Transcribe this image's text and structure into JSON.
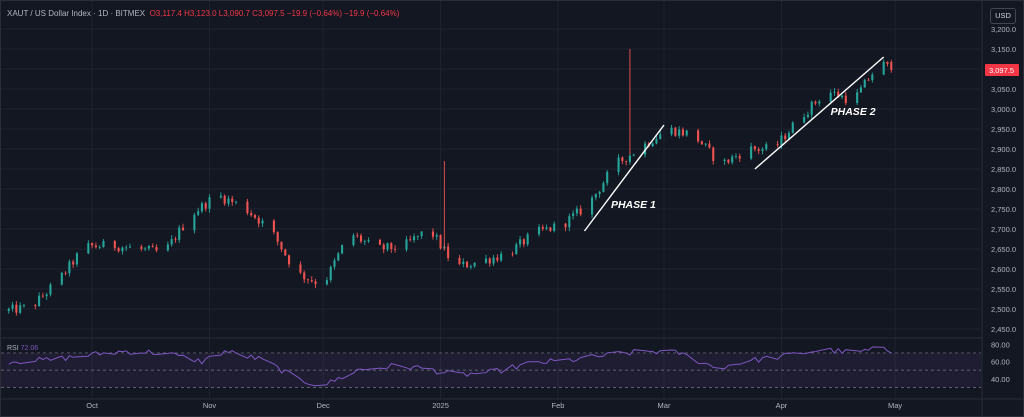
{
  "header": {
    "symbol": "XAUT / US Dollar Index · 1D · BITMEX",
    "ohlc": "O3,117.4  H3,123.0  L3,090.7  C3,097.5  −19.9 (−0.64%)  −19.9 (−0.64%)"
  },
  "currency_button": "USD",
  "price_axis": {
    "ticks": [
      "3,200.0",
      "3,150.0",
      "3,100.0",
      "3,050.0",
      "3,000.0",
      "2,950.0",
      "2,900.0",
      "2,850.0",
      "2,800.0",
      "2,750.0",
      "2,700.0",
      "2,650.0",
      "2,600.0",
      "2,550.0",
      "2,500.0",
      "2,450.0"
    ],
    "last_price": "3,097.5"
  },
  "time_axis": {
    "labels": [
      "Oct",
      "Nov",
      "Dec",
      "2025",
      "Feb",
      "Mar",
      "Apr",
      "May"
    ]
  },
  "rsi": {
    "label": "RSI",
    "value": "72.06",
    "ticks": [
      "80.00",
      "60.00",
      "40.00"
    ]
  },
  "annotations": {
    "phase1": "PHASE 1",
    "phase2": "PHASE 2"
  },
  "colors": {
    "up": "#26a69a",
    "down": "#ef5350",
    "background": "#131722",
    "rsi_line": "#7e57c2",
    "trendline": "#ffffff"
  },
  "chart_data": {
    "type": "candlestick",
    "ylim": [
      2430,
      3230
    ],
    "grid": true,
    "x_domain": [
      "2024-09-08",
      "2025-05-20"
    ],
    "close_path": [
      [
        "2024-09-08",
        2495
      ],
      [
        "2024-09-15",
        2505
      ],
      [
        "2024-09-22",
        2570
      ],
      [
        "2024-09-29",
        2655
      ],
      [
        "2024-10-06",
        2660
      ],
      [
        "2024-10-13",
        2650
      ],
      [
        "2024-10-20",
        2640
      ],
      [
        "2024-10-27",
        2735
      ],
      [
        "2024-11-03",
        2785
      ],
      [
        "2024-11-10",
        2755
      ],
      [
        "2024-11-17",
        2700
      ],
      [
        "2024-11-24",
        2590
      ],
      [
        "2024-12-01",
        2560
      ],
      [
        "2024-12-08",
        2690
      ],
      [
        "2024-12-15",
        2650
      ],
      [
        "2024-12-22",
        2655
      ],
      [
        "2024-12-29",
        2700
      ],
      [
        "2025-01-05",
        2605
      ],
      [
        "2025-01-12",
        2620
      ],
      [
        "2025-01-19",
        2640
      ],
      [
        "2025-01-26",
        2690
      ],
      [
        "2025-02-02",
        2710
      ],
      [
        "2025-02-09",
        2760
      ],
      [
        "2025-02-16",
        2860
      ],
      [
        "2025-02-23",
        2905
      ],
      [
        "2025-03-02",
        2950
      ],
      [
        "2025-03-09",
        2935
      ],
      [
        "2025-03-16",
        2860
      ],
      [
        "2025-03-23",
        2900
      ],
      [
        "2025-03-30",
        2900
      ],
      [
        "2025-04-06",
        2980
      ],
      [
        "2025-04-13",
        3045
      ],
      [
        "2025-04-20",
        3020
      ],
      [
        "2025-04-27",
        3117
      ],
      [
        "2025-04-30",
        3097.5
      ]
    ],
    "spikes": [
      [
        "2025-01-02",
        2870
      ],
      [
        "2025-02-20",
        3150
      ]
    ],
    "last": {
      "date": "2025-04-30",
      "open": 3117.4,
      "high": 3123.0,
      "low": 3090.7,
      "close": 3097.5
    },
    "trendlines": [
      {
        "from": [
          "2025-02-08",
          2695
        ],
        "to": [
          "2025-03-01",
          2960
        ]
      },
      {
        "from": [
          "2025-03-25",
          2850
        ],
        "to": [
          "2025-04-28",
          3130
        ]
      }
    ],
    "rsi_series": {
      "overbought": 70,
      "oversold": 30,
      "ylim": [
        20,
        85
      ],
      "path": [
        [
          "2024-09-08",
          60
        ],
        [
          "2024-09-20",
          62
        ],
        [
          "2024-10-01",
          68
        ],
        [
          "2024-10-10",
          72
        ],
        [
          "2024-10-20",
          70
        ],
        [
          "2024-10-30",
          60
        ],
        [
          "2024-11-05",
          72
        ],
        [
          "2024-11-15",
          62
        ],
        [
          "2024-11-25",
          38
        ],
        [
          "2024-12-01",
          32
        ],
        [
          "2024-12-10",
          50
        ],
        [
          "2024-12-20",
          55
        ],
        [
          "2024-12-28",
          52
        ],
        [
          "2025-01-05",
          44
        ],
        [
          "2025-01-15",
          48
        ],
        [
          "2025-01-25",
          58
        ],
        [
          "2025-02-05",
          62
        ],
        [
          "2025-02-15",
          68
        ],
        [
          "2025-02-25",
          72
        ],
        [
          "2025-03-05",
          70
        ],
        [
          "2025-03-15",
          52
        ],
        [
          "2025-03-22",
          60
        ],
        [
          "2025-04-01",
          66
        ],
        [
          "2025-04-12",
          74
        ],
        [
          "2025-04-20",
          70
        ],
        [
          "2025-04-27",
          75
        ],
        [
          "2025-04-30",
          72
        ]
      ]
    }
  }
}
